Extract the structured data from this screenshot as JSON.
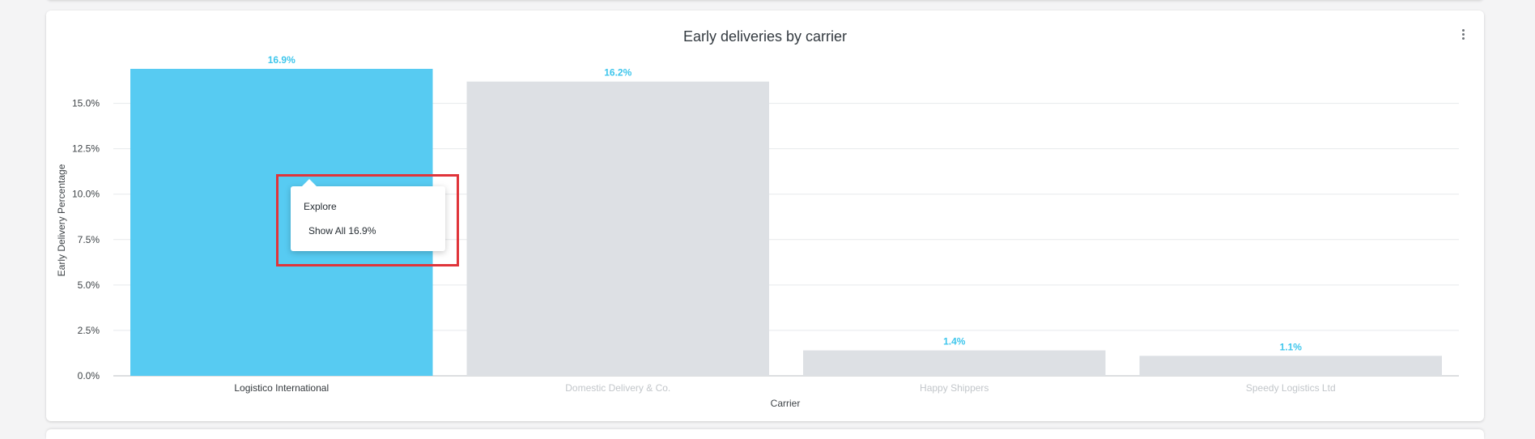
{
  "card": {
    "title": "Early deliveries by carrier",
    "menu_icon": "kebab-menu-icon"
  },
  "tooltip": {
    "title": "Explore",
    "item": "Show All 16.9%"
  },
  "colors": {
    "highlight_bar": "#57cbf2",
    "muted_bar": "#dde0e4",
    "value_label": "#3ec6ec",
    "annotation_box": "#e0343a",
    "muted_label": "#c2c6ca"
  },
  "chart_data": {
    "type": "bar",
    "title": "Early deliveries by carrier",
    "xlabel": "Carrier",
    "ylabel": "Early Delivery Percentage",
    "categories": [
      "Logistico International",
      "Domestic Delivery & Co.",
      "Happy Shippers",
      "Speedy Logistics Ltd"
    ],
    "values": [
      16.9,
      16.2,
      1.4,
      1.1
    ],
    "value_labels": [
      "16.9%",
      "16.2%",
      "1.4%",
      "1.1%"
    ],
    "highlighted_index": 0,
    "yticks": [
      0,
      2.5,
      5,
      7.5,
      10,
      12.5,
      15
    ],
    "ytick_labels": [
      "0.0%",
      "2.5%",
      "5.0%",
      "7.5%",
      "10.0%",
      "12.5%",
      "15.0%"
    ],
    "ylim": [
      0,
      16.9
    ],
    "grid": true
  }
}
